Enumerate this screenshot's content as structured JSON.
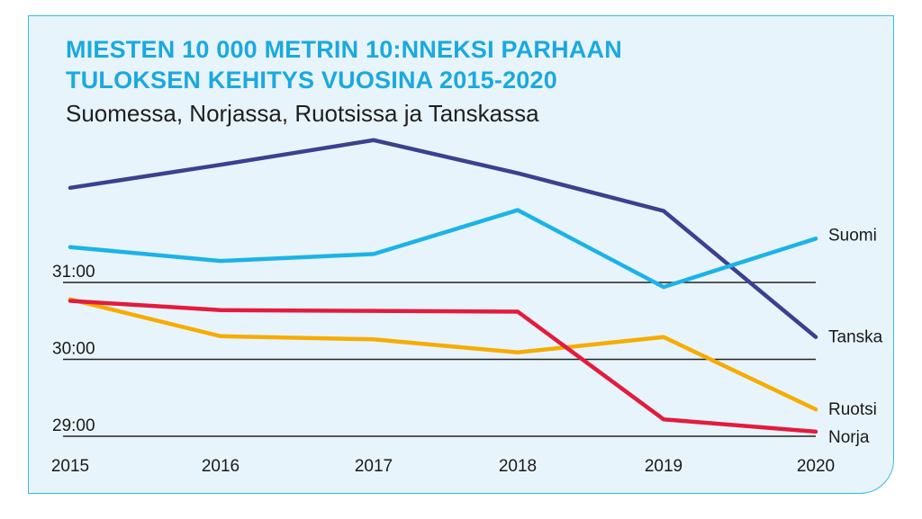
{
  "title_line1": "MIESTEN 10 000 METRIN 10:NNEKSI PARHAAN",
  "title_line2": "TULOKSEN KEHITYS VUOSINA 2015-2020",
  "subtitle": "Suomessa, Norjassa, Ruotsissa ja Tanskassa",
  "colors": {
    "title": "#1aa9e0",
    "panel_bg": "#e8f4fb",
    "panel_border": "#3bb8e6",
    "gridline": "#222222"
  },
  "chart_data": {
    "type": "line",
    "title": "MIESTEN 10 000 METRIN 10:NNEKSI PARHAAN TULOKSEN KEHITYS VUOSINA 2015-2020",
    "subtitle": "Suomessa, Norjassa, Ruotsissa ja Tanskassa",
    "x_unit": "year",
    "y_unit": "minutes (10 000 m time)",
    "categories": [
      "2015",
      "2016",
      "2017",
      "2018",
      "2019",
      "2020"
    ],
    "ylim": [
      29.0,
      32.97
    ],
    "yticks": [
      {
        "value": 29.0,
        "label": "29:00"
      },
      {
        "value": 30.0,
        "label": "30:00"
      },
      {
        "value": 31.0,
        "label": "31:00"
      }
    ],
    "grid": "horizontal at tick values",
    "legend": "series labels at right end of lines",
    "series": [
      {
        "name": "Tanska",
        "color": "#3a4190",
        "values": [
          32.23,
          32.53,
          32.85,
          32.42,
          31.93,
          30.29
        ]
      },
      {
        "name": "Suomi",
        "color": "#1bb3e8",
        "values": [
          31.46,
          31.28,
          31.37,
          31.94,
          30.94,
          31.57
        ]
      },
      {
        "name": "Ruotsi",
        "color": "#f6ac00",
        "values": [
          30.78,
          30.3,
          30.26,
          30.09,
          30.29,
          29.35
        ]
      },
      {
        "name": "Norja",
        "color": "#e31b3c",
        "values": [
          30.76,
          30.64,
          30.63,
          30.62,
          29.22,
          29.06
        ]
      }
    ]
  }
}
